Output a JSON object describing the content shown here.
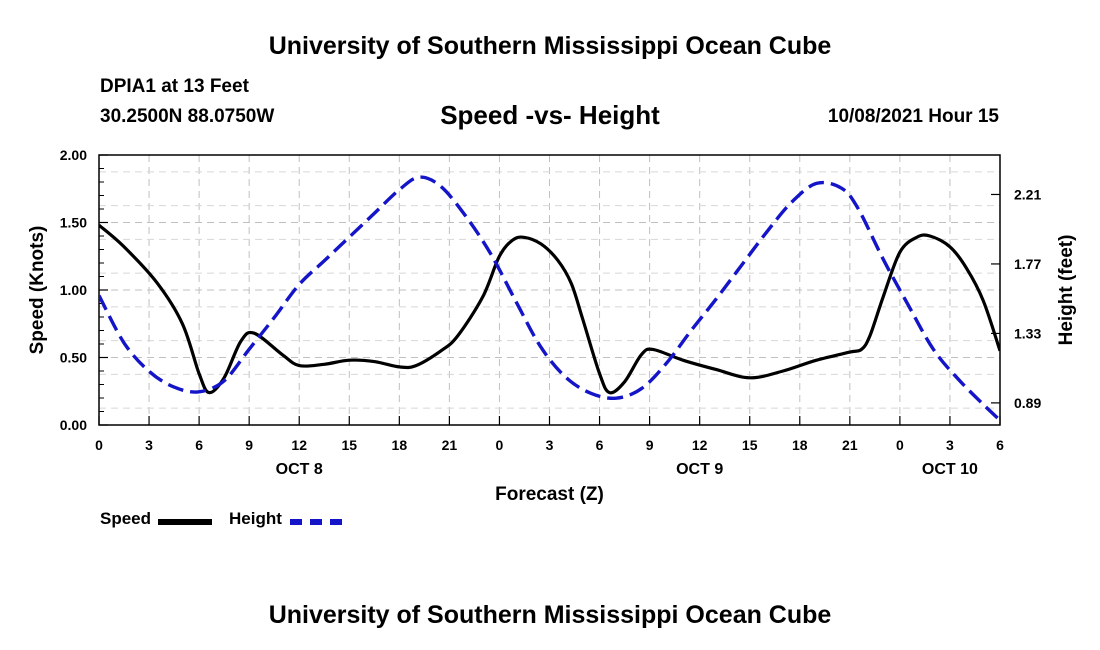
{
  "header": {
    "title": "University of Southern Mississippi Ocean Cube",
    "station": "DPIA1 at 13 Feet",
    "coords": "30.2500N  88.0750W",
    "datetime": "10/08/2021 Hour 15"
  },
  "footer": {
    "title": "University of Southern Mississippi Ocean Cube"
  },
  "legend": {
    "speed_label": "Speed",
    "height_label": "Height"
  },
  "colors": {
    "speed": "#000000",
    "height": "#1414c8",
    "grid": "#c0c0c0"
  },
  "chart_data": {
    "type": "line",
    "title": "Speed -vs- Height",
    "xlabel": "Forecast (Z)",
    "ylabel": "Speed (Knots)",
    "y2label": "Height (feet)",
    "x_range": [
      0,
      54
    ],
    "x_ticks": [
      {
        "x": 0,
        "label": "0"
      },
      {
        "x": 3,
        "label": "3"
      },
      {
        "x": 6,
        "label": "6"
      },
      {
        "x": 9,
        "label": "9"
      },
      {
        "x": 12,
        "label": "12"
      },
      {
        "x": 15,
        "label": "15"
      },
      {
        "x": 18,
        "label": "18"
      },
      {
        "x": 21,
        "label": "21"
      },
      {
        "x": 24,
        "label": "0"
      },
      {
        "x": 27,
        "label": "3"
      },
      {
        "x": 30,
        "label": "6"
      },
      {
        "x": 33,
        "label": "9"
      },
      {
        "x": 36,
        "label": "12"
      },
      {
        "x": 39,
        "label": "15"
      },
      {
        "x": 42,
        "label": "18"
      },
      {
        "x": 45,
        "label": "21"
      },
      {
        "x": 48,
        "label": "0"
      },
      {
        "x": 51,
        "label": "3"
      },
      {
        "x": 54,
        "label": "6"
      }
    ],
    "day_labels": [
      {
        "x": 12,
        "label": "OCT 8"
      },
      {
        "x": 36,
        "label": "OCT 9"
      },
      {
        "x": 51,
        "label": "OCT 10"
      }
    ],
    "ylim": [
      0,
      2
    ],
    "y_ticks": [
      {
        "y": 0,
        "label": "0.00"
      },
      {
        "y": 0.5,
        "label": "0.50"
      },
      {
        "y": 1.0,
        "label": "1.00"
      },
      {
        "y": 1.5,
        "label": "1.50"
      },
      {
        "y": 2.0,
        "label": "2.00"
      }
    ],
    "y2lim": [
      0.75,
      2.46
    ],
    "y2_ticks": [
      {
        "y": 0.89,
        "label": "0.89"
      },
      {
        "y": 1.33,
        "label": "1.33"
      },
      {
        "y": 1.77,
        "label": "1.77"
      },
      {
        "y": 2.21,
        "label": "2.21"
      }
    ],
    "series": [
      {
        "name": "Speed",
        "axis": "left",
        "style": "solid",
        "x": [
          0,
          1.5,
          3.5,
          5,
          6,
          6.6,
          7.5,
          8.5,
          9.3,
          11,
          12,
          13.5,
          15,
          16.5,
          18,
          19,
          20.5,
          21.5,
          23,
          24,
          24.8,
          25.5,
          26.5,
          27.5,
          28.3,
          29,
          30,
          30.6,
          31.5,
          32.5,
          33.2,
          35,
          37,
          39,
          41,
          43,
          45,
          45.7,
          46.2,
          47,
          48,
          49,
          49.8,
          51,
          52,
          53,
          54
        ],
        "values": [
          1.48,
          1.32,
          1.05,
          0.75,
          0.38,
          0.24,
          0.35,
          0.62,
          0.68,
          0.52,
          0.44,
          0.45,
          0.48,
          0.47,
          0.43,
          0.44,
          0.55,
          0.66,
          0.95,
          1.25,
          1.37,
          1.39,
          1.34,
          1.22,
          1.05,
          0.78,
          0.38,
          0.24,
          0.32,
          0.52,
          0.56,
          0.48,
          0.41,
          0.35,
          0.4,
          0.48,
          0.54,
          0.56,
          0.66,
          0.95,
          1.28,
          1.39,
          1.4,
          1.32,
          1.16,
          0.92,
          0.55
        ]
      },
      {
        "name": "Height",
        "axis": "right",
        "style": "dashed",
        "x": [
          0,
          1.5,
          3,
          4.5,
          6,
          7.5,
          9,
          10.5,
          12,
          13.5,
          15,
          16.5,
          18,
          19.2,
          20.5,
          22,
          23.5,
          25,
          26.5,
          28,
          29.5,
          31,
          32.5,
          34,
          35.5,
          37,
          38.5,
          40,
          41.5,
          43,
          44.5,
          45.5,
          47,
          48.5,
          50,
          51.5,
          53,
          54
        ],
        "values": [
          1.57,
          1.27,
          1.09,
          0.99,
          0.96,
          1.03,
          1.23,
          1.43,
          1.64,
          1.79,
          1.94,
          2.09,
          2.24,
          2.32,
          2.26,
          2.07,
          1.83,
          1.53,
          1.24,
          1.05,
          0.95,
          0.92,
          0.98,
          1.14,
          1.35,
          1.55,
          1.76,
          1.97,
          2.16,
          2.28,
          2.25,
          2.12,
          1.8,
          1.51,
          1.23,
          1.04,
          0.88,
          0.78
        ]
      }
    ]
  }
}
